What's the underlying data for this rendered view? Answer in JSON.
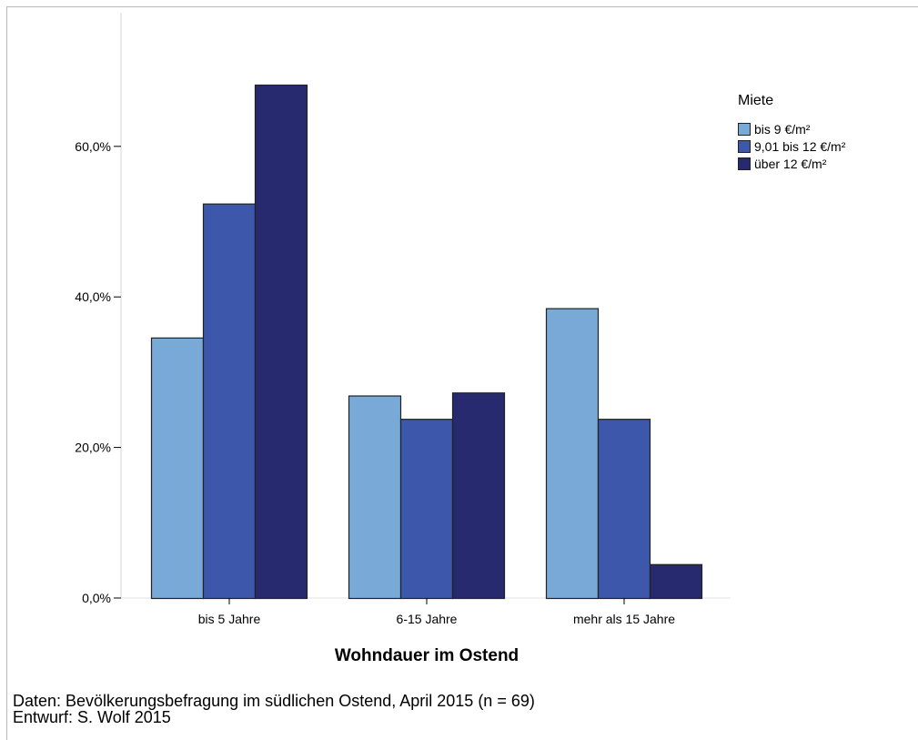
{
  "chart_data": {
    "type": "bar",
    "categories": [
      "bis 5 Jahre",
      "6-15 Jahre",
      "mehr als 15 Jahre"
    ],
    "series": [
      {
        "name": "bis 9 €/m²",
        "color": "#79a9d6",
        "values": [
          34.6,
          26.9,
          38.5
        ]
      },
      {
        "name": "9,01 bis 12 €/m²",
        "color": "#3d57ab",
        "values": [
          52.4,
          23.8,
          23.8
        ]
      },
      {
        "name": "über 12 €/m²",
        "color": "#272a6e",
        "values": [
          68.2,
          27.3,
          4.5
        ]
      }
    ],
    "xlabel": "Wohndauer im Ostend",
    "ylabel": "",
    "ylim": [
      0,
      75
    ],
    "yticks": [
      {
        "value": 0,
        "label": "0,0%"
      },
      {
        "value": 20,
        "label": "20,0%"
      },
      {
        "value": 40,
        "label": "40,0%"
      },
      {
        "value": 60,
        "label": "60,0%"
      }
    ],
    "legend_title": "Miete",
    "legend_position": "top-right",
    "grid": false
  },
  "footer": {
    "source": "Daten: Bevölkerungsbefragung im südlichen Ostend, April 2015 (n = 69)",
    "author": "Entwurf: S. Wolf 2015"
  }
}
